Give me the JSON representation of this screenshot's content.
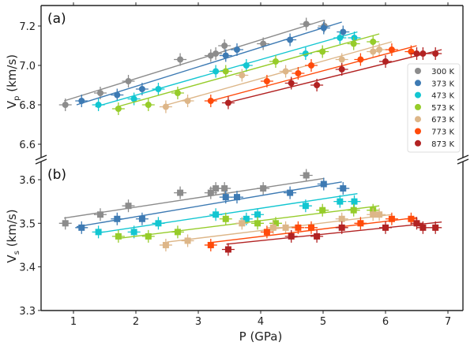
{
  "chart_data": {
    "type": "scatter",
    "xlabel": "P (GPa)",
    "xlim": [
      0.5,
      7.2
    ],
    "xticks": [
      "1",
      "2",
      "3",
      "4",
      "5",
      "6",
      "7"
    ],
    "legend_position": "right, upper panel",
    "series_colors": {
      "300 K": "#8c8c8c",
      "373 K": "#3d7ab3",
      "473 K": "#12c6d1",
      "573 K": "#96cc2a",
      "673 K": "#ddb688",
      "773 K": "#ff4a0a",
      "873 K": "#b22222"
    },
    "panels": [
      {
        "label": "(a)",
        "ylabel_main": "V",
        "ylabel_sub": "p",
        "ylabel_rest": " (km/s)",
        "ylim": [
          6.5,
          7.3
        ],
        "yticks": [
          "6.6",
          "6.8",
          "7.0",
          "7.2"
        ],
        "yticks_values": [
          6.6,
          6.8,
          7.0,
          7.2
        ],
        "marker": "circle",
        "series": [
          {
            "name": "300 K",
            "x": [
              0.87,
              1.43,
              1.88,
              2.71,
              3.2,
              3.28,
              3.42,
              4.04,
              4.73,
              5.02
            ],
            "y": [
              6.8,
              6.86,
              6.92,
              7.03,
              7.05,
              7.06,
              7.1,
              7.11,
              7.21,
              7.2
            ],
            "fit": [
              [
                0.85,
                6.82
              ],
              [
                5.02,
                7.23
              ]
            ]
          },
          {
            "name": "373 K",
            "x": [
              1.13,
              1.7,
              2.1,
              3.44,
              3.62,
              4.47,
              5.01,
              5.32
            ],
            "y": [
              6.82,
              6.85,
              6.88,
              7.05,
              7.08,
              7.13,
              7.19,
              7.17
            ],
            "fit": [
              [
                1.05,
                6.8
              ],
              [
                5.3,
                7.22
              ]
            ]
          },
          {
            "name": "473 K",
            "x": [
              1.4,
              1.97,
              2.36,
              3.28,
              3.77,
              4.72,
              5.27,
              5.5
            ],
            "y": [
              6.8,
              6.83,
              6.88,
              6.97,
              7.0,
              7.06,
              7.14,
              7.14
            ],
            "fit": [
              [
                1.35,
                6.79
              ],
              [
                5.55,
                7.17
              ]
            ]
          },
          {
            "name": "573 K",
            "x": [
              1.72,
              2.2,
              2.67,
              3.44,
              4.24,
              4.99,
              5.49,
              5.8
            ],
            "y": [
              6.78,
              6.8,
              6.86,
              6.97,
              7.02,
              7.07,
              7.11,
              7.12
            ],
            "fit": [
              [
                1.7,
                6.79
              ],
              [
                5.9,
                7.16
              ]
            ]
          },
          {
            "name": "673 K",
            "x": [
              2.48,
              2.83,
              3.7,
              4.4,
              5.3,
              5.8,
              5.9
            ],
            "y": [
              6.79,
              6.82,
              6.95,
              6.97,
              7.03,
              7.07,
              7.08
            ],
            "fit": [
              [
                2.5,
                6.8
              ],
              [
                6.1,
                7.12
              ]
            ]
          },
          {
            "name": "773 K",
            "x": [
              3.2,
              4.1,
              4.6,
              4.81,
              5.6,
              6.1,
              6.41
            ],
            "y": [
              6.82,
              6.92,
              6.96,
              7.0,
              7.03,
              7.08,
              7.07
            ],
            "fit": [
              [
                3.2,
                6.82
              ],
              [
                6.5,
                7.1
              ]
            ]
          },
          {
            "name": "873 K",
            "x": [
              3.48,
              4.49,
              4.9,
              5.3,
              6.0,
              6.5,
              6.6,
              6.8
            ],
            "y": [
              6.81,
              6.91,
              6.9,
              6.98,
              7.02,
              7.06,
              7.06,
              7.06
            ],
            "fit": [
              [
                3.45,
                6.81
              ],
              [
                6.9,
                7.08
              ]
            ]
          }
        ]
      },
      {
        "label": "(b)",
        "ylabel_main": "V",
        "ylabel_sub": "s",
        "ylabel_rest": " (km/s)",
        "ylim": [
          3.3,
          3.63
        ],
        "yticks": [
          "3.3",
          "3.4",
          "3.5",
          "3.6"
        ],
        "yticks_values": [
          3.3,
          3.4,
          3.5,
          3.6
        ],
        "marker": "square",
        "series": [
          {
            "name": "300 K",
            "x": [
              0.87,
              1.43,
              1.88,
              2.71,
              3.2,
              3.28,
              3.42,
              4.04,
              4.73
            ],
            "y": [
              3.5,
              3.52,
              3.54,
              3.57,
              3.57,
              3.58,
              3.58,
              3.58,
              3.61
            ],
            "fit": [
              [
                0.85,
                3.512
              ],
              [
                5.02,
                3.603
              ]
            ]
          },
          {
            "name": "373 K",
            "x": [
              1.13,
              1.7,
              2.1,
              3.44,
              3.62,
              4.47,
              5.01,
              5.32
            ],
            "y": [
              3.49,
              3.51,
              3.51,
              3.56,
              3.56,
              3.57,
              3.59,
              3.58
            ],
            "fit": [
              [
                1.05,
                3.492
              ],
              [
                5.3,
                3.595
              ]
            ]
          },
          {
            "name": "473 K",
            "x": [
              1.4,
              1.97,
              2.36,
              3.28,
              3.77,
              3.95,
              4.72,
              5.27,
              5.5
            ],
            "y": [
              3.48,
              3.48,
              3.5,
              3.52,
              3.51,
              3.52,
              3.54,
              3.55,
              3.55
            ],
            "fit": [
              [
                1.4,
                3.478
              ],
              [
                5.55,
                3.568
              ]
            ]
          },
          {
            "name": "573 K",
            "x": [
              1.72,
              2.2,
              2.67,
              3.44,
              3.95,
              4.24,
              4.99,
              5.49,
              5.8
            ],
            "y": [
              3.47,
              3.47,
              3.48,
              3.51,
              3.5,
              3.5,
              3.53,
              3.53,
              3.53
            ],
            "fit": [
              [
                1.7,
                3.465
              ],
              [
                5.9,
                3.54
              ]
            ]
          },
          {
            "name": "673 K",
            "x": [
              2.48,
              2.83,
              3.7,
              4.2,
              4.4,
              5.3,
              5.8,
              5.9
            ],
            "y": [
              3.45,
              3.46,
              3.5,
              3.49,
              3.49,
              3.51,
              3.52,
              3.52
            ],
            "fit": [
              [
                2.5,
                3.457
              ],
              [
                6.1,
                3.52
              ]
            ]
          },
          {
            "name": "773 K",
            "x": [
              3.2,
              4.1,
              4.6,
              4.81,
              5.6,
              6.1,
              6.41
            ],
            "y": [
              3.45,
              3.48,
              3.49,
              3.49,
              3.5,
              3.51,
              3.51
            ],
            "fit": [
              [
                3.15,
                3.455
              ],
              [
                6.5,
                3.513
              ]
            ]
          },
          {
            "name": "873 K",
            "x": [
              3.48,
              4.49,
              4.9,
              5.3,
              6.0,
              6.5,
              6.6,
              6.8
            ],
            "y": [
              3.44,
              3.47,
              3.47,
              3.49,
              3.49,
              3.5,
              3.49,
              3.49
            ],
            "fit": [
              [
                3.45,
                3.452
              ],
              [
                6.9,
                3.503
              ]
            ]
          }
        ]
      }
    ],
    "legend": [
      "300 K",
      "373 K",
      "473 K",
      "573 K",
      "673 K",
      "773 K",
      "873 K"
    ]
  }
}
